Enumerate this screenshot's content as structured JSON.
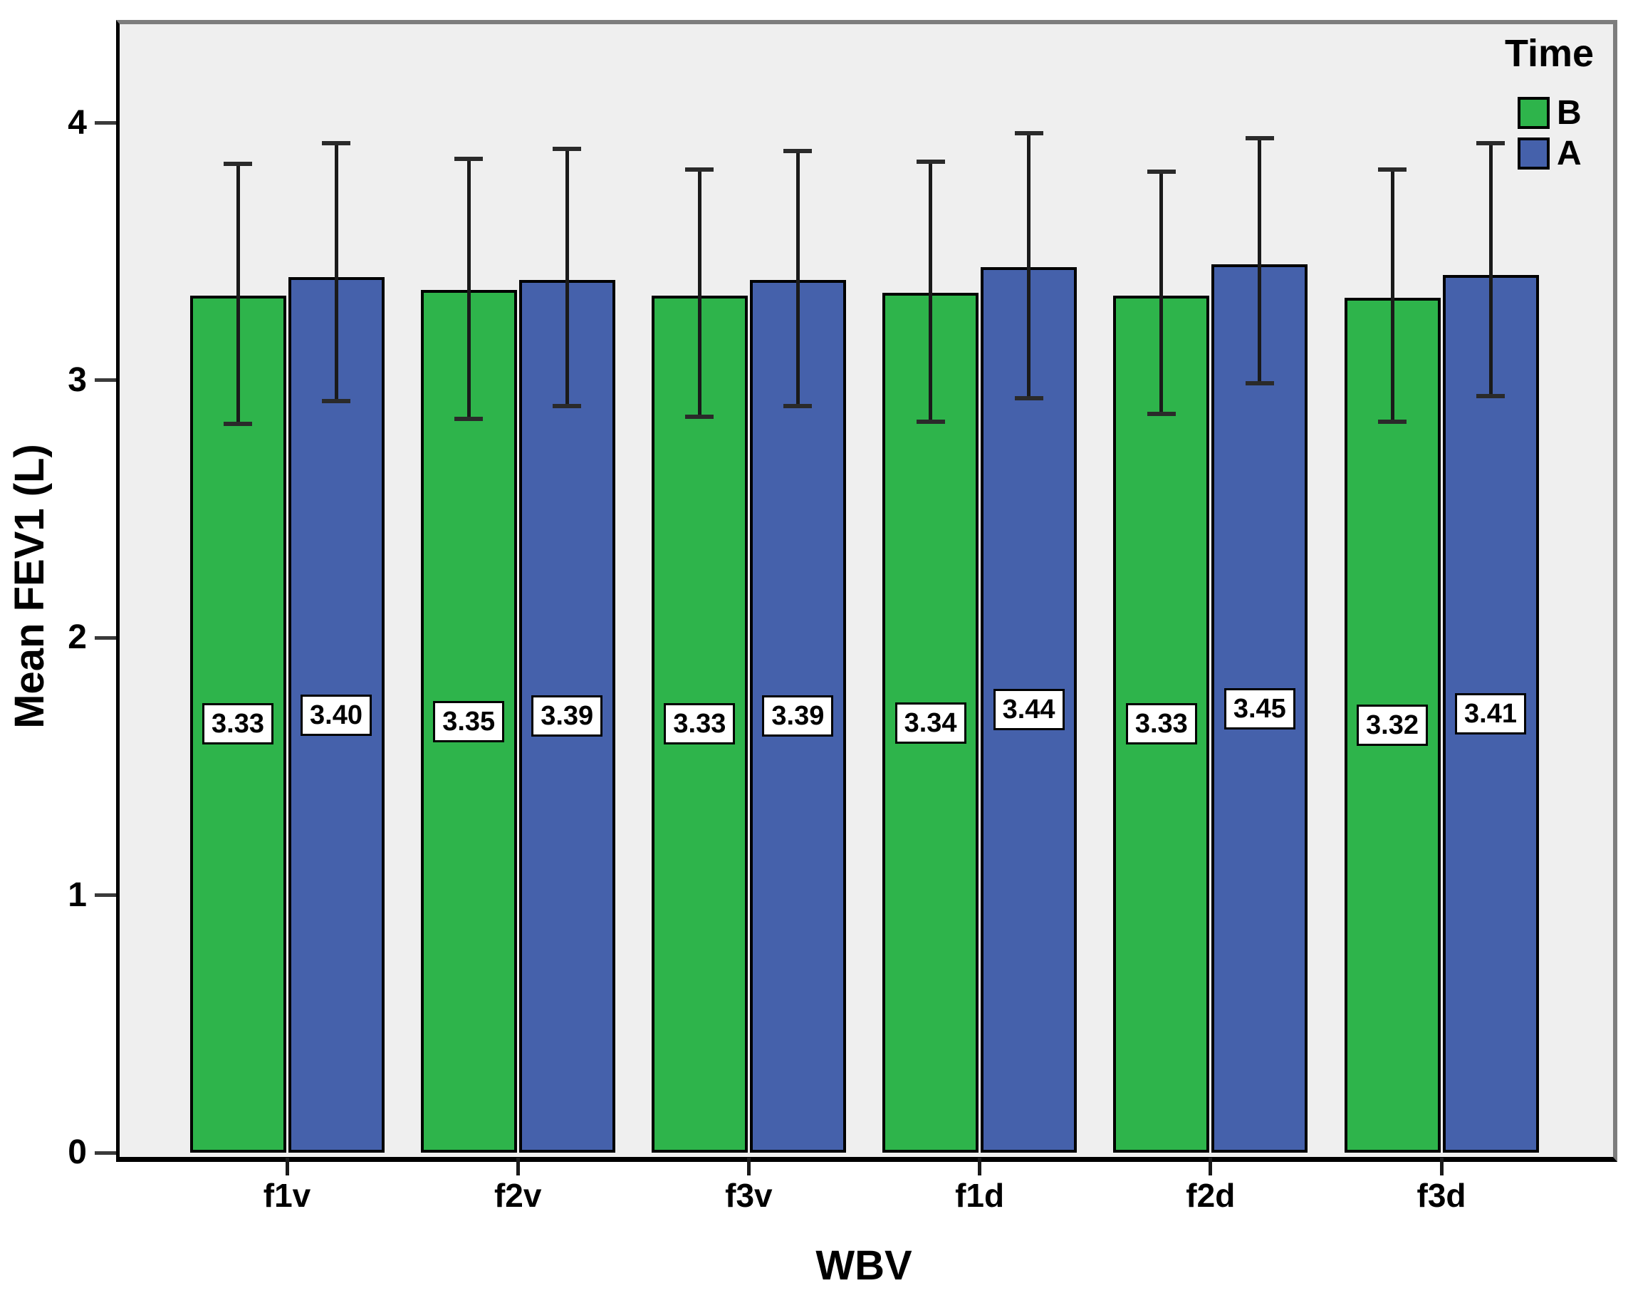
{
  "chart_data": {
    "type": "bar",
    "title": "",
    "xlabel": "WBV",
    "ylabel": "Mean FEV1 (L)",
    "categories": [
      "f1v",
      "f2v",
      "f3v",
      "f1d",
      "f2d",
      "f3d"
    ],
    "series": [
      {
        "name": "B",
        "color": "#2eb44b",
        "values": [
          3.33,
          3.35,
          3.33,
          3.34,
          3.33,
          3.32
        ],
        "labels": [
          "3.33",
          "3.35",
          "3.33",
          "3.34",
          "3.33",
          "3.32"
        ],
        "error_high": [
          3.84,
          3.86,
          3.82,
          3.85,
          3.81,
          3.82
        ],
        "error_low": [
          2.83,
          2.85,
          2.86,
          2.84,
          2.87,
          2.84
        ]
      },
      {
        "name": "A",
        "color": "#4561ab",
        "values": [
          3.4,
          3.39,
          3.39,
          3.44,
          3.45,
          3.41
        ],
        "labels": [
          "3.40",
          "3.39",
          "3.39",
          "3.44",
          "3.45",
          "3.41"
        ],
        "error_high": [
          3.92,
          3.9,
          3.89,
          3.96,
          3.94,
          3.92
        ],
        "error_low": [
          2.92,
          2.9,
          2.9,
          2.93,
          2.99,
          2.94
        ]
      }
    ],
    "legend": {
      "title": "Time",
      "entries": [
        "B",
        "A"
      ],
      "position": "top-right-inside"
    },
    "ylim": [
      0,
      4.4
    ],
    "yticks": [
      "0",
      "1",
      "2",
      "3",
      "4"
    ],
    "grid": false,
    "error_bars": true
  },
  "colors": {
    "plot_background": "#efefef",
    "canvas_background": "#ffffff",
    "frame_border": "#7d7d7d",
    "axis_line": "#000000",
    "bar_border": "#000000",
    "error_bar": "#1a1a1a",
    "value_label_bg": "#ffffff",
    "text": "#000000"
  }
}
